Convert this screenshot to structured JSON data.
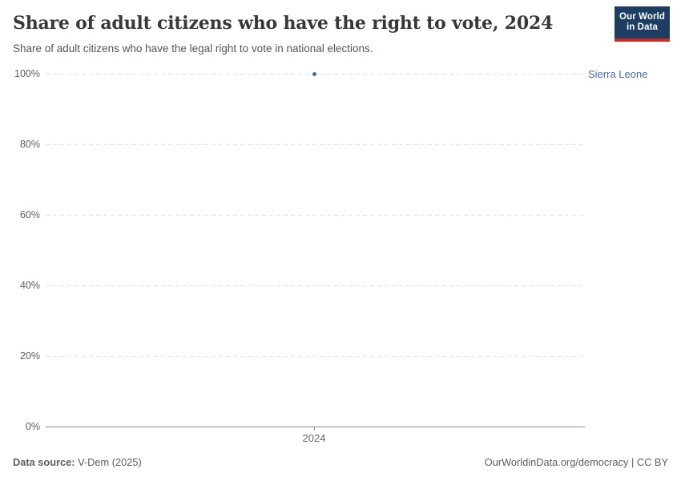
{
  "header": {
    "title": "Share of adult citizens who have the right to vote, 2024",
    "subtitle": "Share of adult citizens who have the legal right to vote in national elections."
  },
  "logo": {
    "line1": "Our World",
    "line2": "in Data",
    "bg_color": "#1D3D63",
    "bar_color": "#D42B21"
  },
  "chart_data": {
    "type": "scatter",
    "title": "Share of adult citizens who have the right to vote, 2024",
    "x": [
      2024
    ],
    "series": [
      {
        "name": "Sierra Leone",
        "values": [
          100
        ],
        "color": "#4C6A9C"
      }
    ],
    "xlabel": "",
    "ylabel": "",
    "ylim": [
      0,
      100
    ],
    "y_ticks": [
      {
        "value": 0,
        "label": "0%"
      },
      {
        "value": 20,
        "label": "20%"
      },
      {
        "value": 40,
        "label": "40%"
      },
      {
        "value": 60,
        "label": "60%"
      },
      {
        "value": 80,
        "label": "80%"
      },
      {
        "value": 100,
        "label": "100%"
      }
    ],
    "x_ticks": [
      {
        "value": 2024,
        "label": "2024"
      }
    ],
    "grid": "horizontal-dashed",
    "legend_position": "entity label right of plot"
  },
  "footer": {
    "source_label": "Data source:",
    "source_value": " V-Dem (2025)",
    "right_text": "OurWorldinData.org/democracy | CC BY"
  }
}
